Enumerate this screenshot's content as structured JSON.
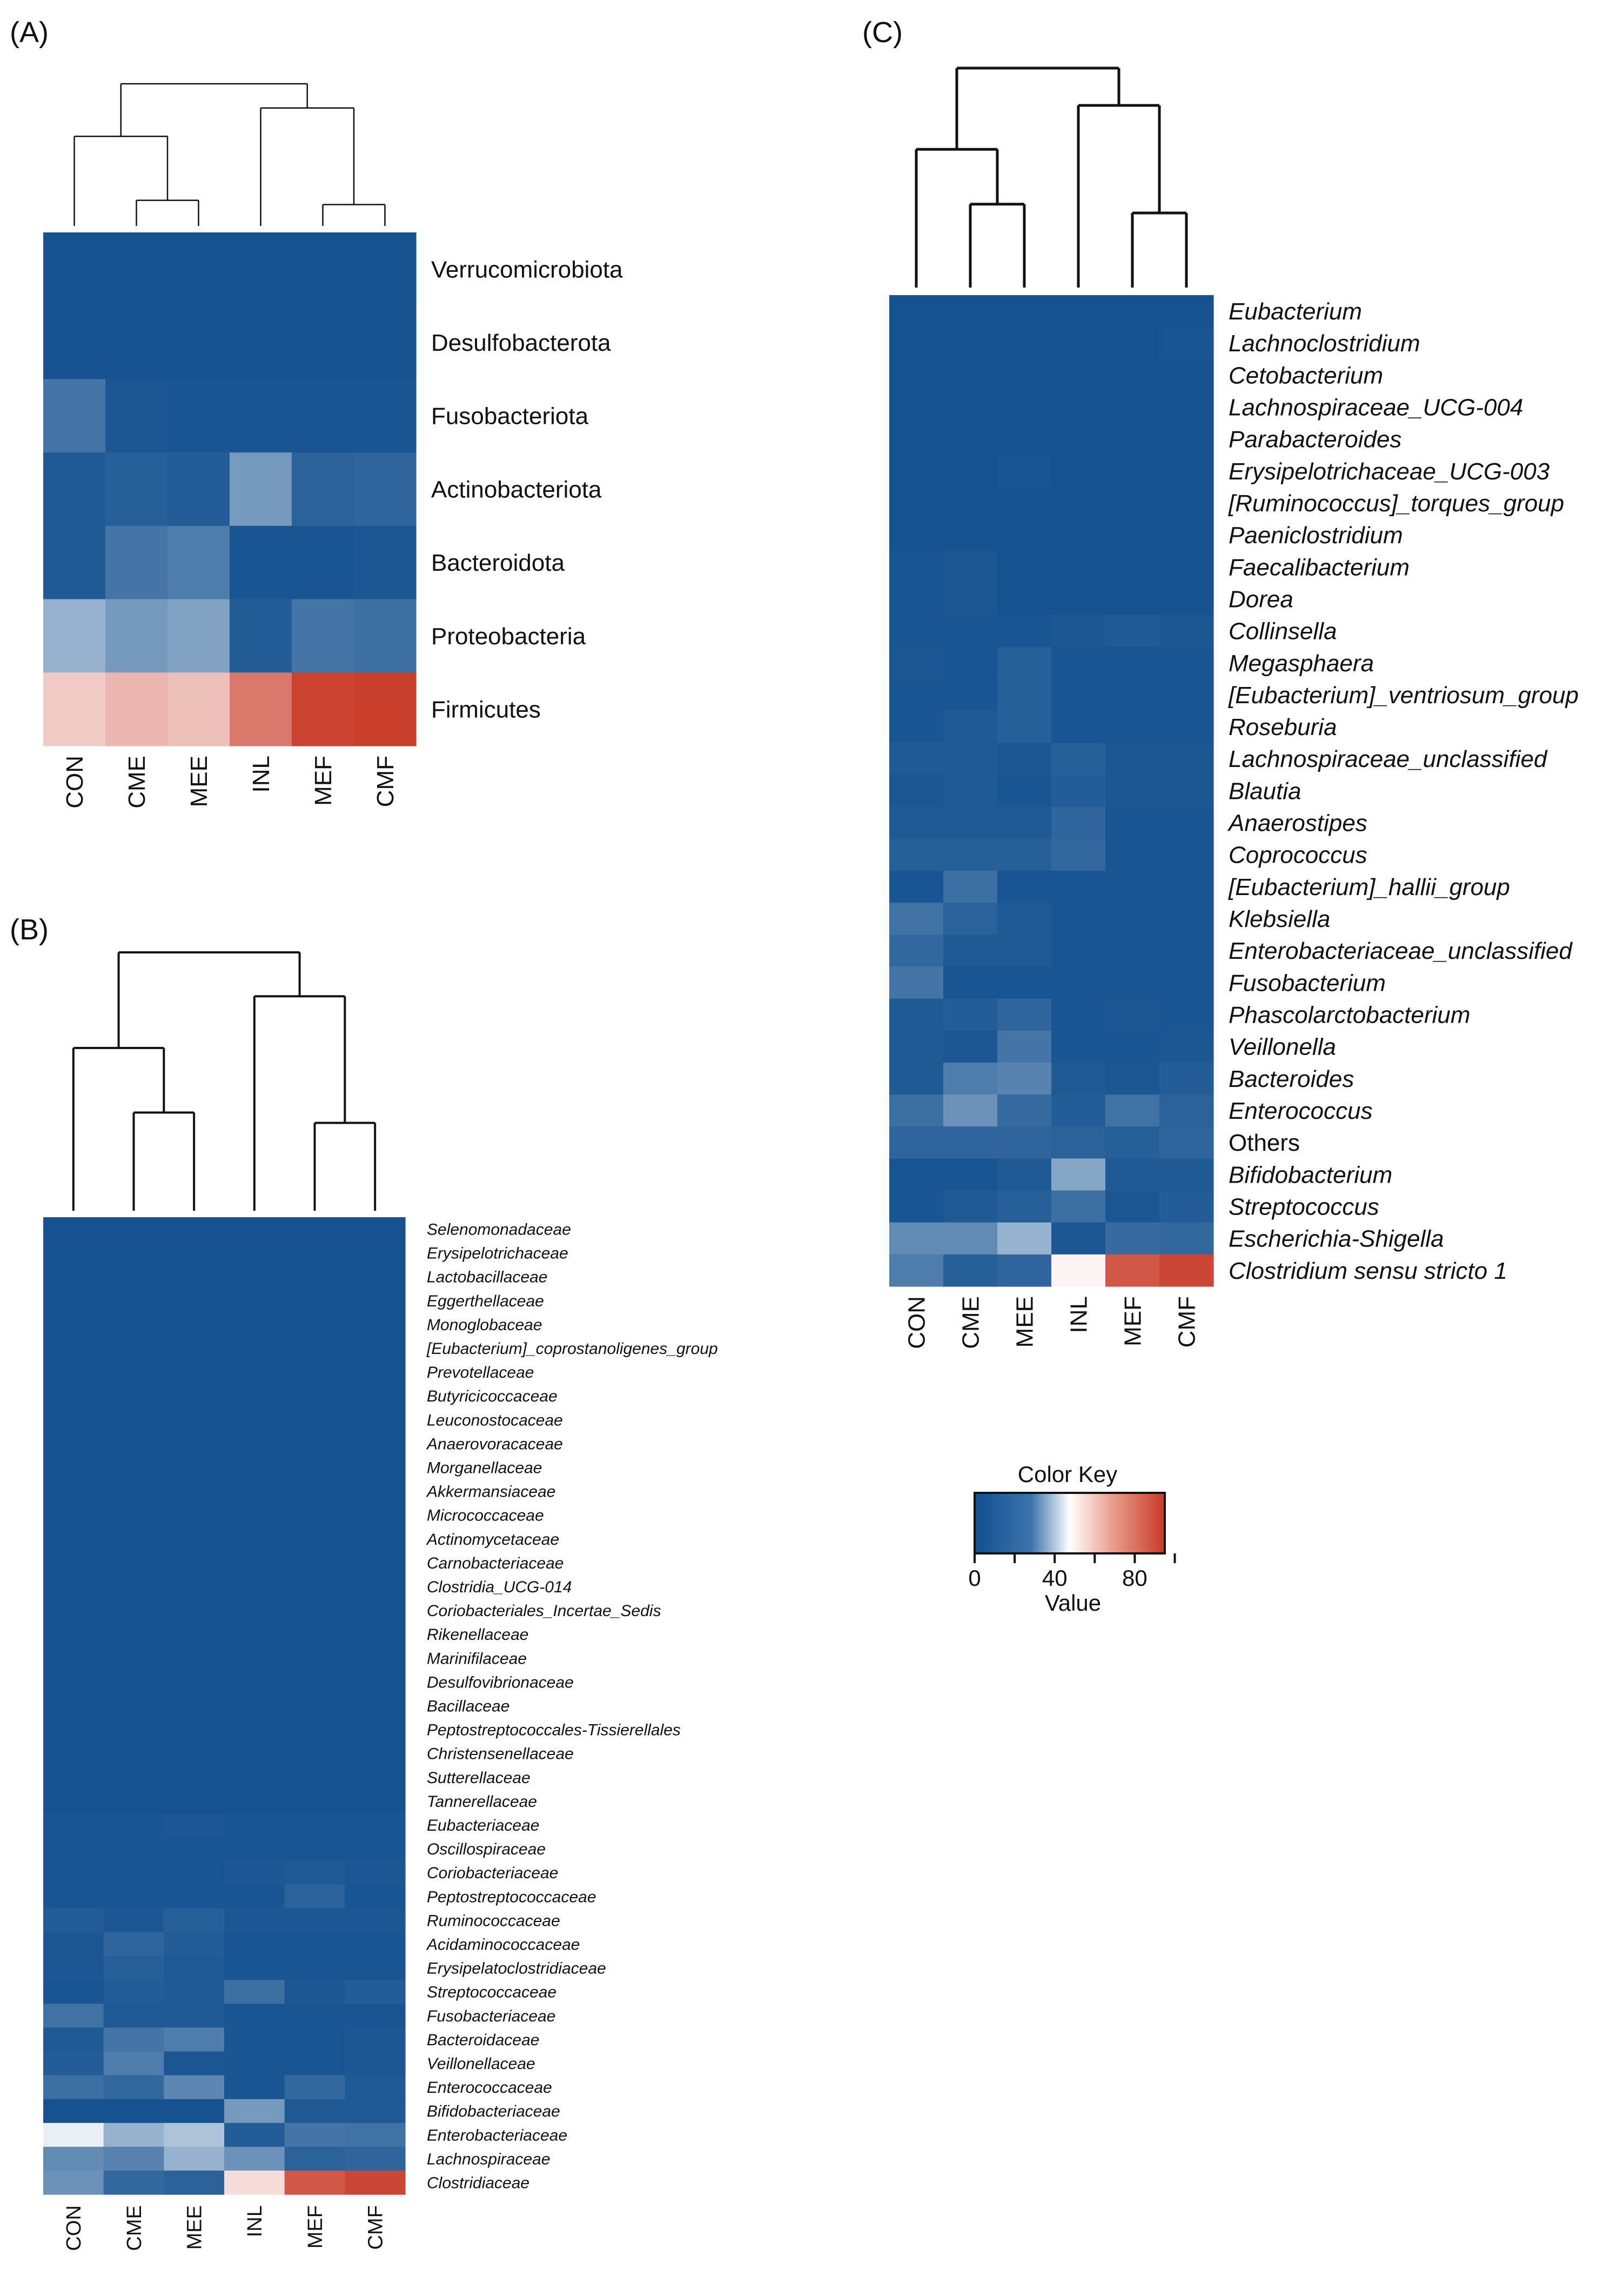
{
  "chart_data": [
    {
      "panel": "(A)",
      "type": "heatmap",
      "columns": [
        "CON",
        "CME",
        "MEE",
        "INL",
        "MEF",
        "CMF"
      ],
      "rows": [
        {
          "label": "Verrucomicrobiota",
          "italic": false,
          "values": [
            2,
            2,
            2,
            2,
            2,
            2
          ]
        },
        {
          "label": "Desulfobacterota",
          "italic": false,
          "values": [
            2,
            2,
            2,
            2,
            2,
            2
          ]
        },
        {
          "label": "Fusobacteriota",
          "italic": false,
          "values": [
            14,
            4,
            3,
            3,
            3,
            3
          ]
        },
        {
          "label": "Actinobacteriota",
          "italic": false,
          "values": [
            5,
            7,
            6,
            24,
            8,
            9
          ]
        },
        {
          "label": "Bacteroidota",
          "italic": false,
          "values": [
            5,
            14,
            16,
            3,
            3,
            4
          ]
        },
        {
          "label": "Proteobacteria",
          "italic": false,
          "values": [
            30,
            24,
            26,
            6,
            14,
            12
          ]
        },
        {
          "label": "Firmicutes",
          "italic": false,
          "values": [
            60,
            65,
            63,
            80,
            93,
            94
          ]
        }
      ],
      "dendrogram": "((CON,(CME,MEE)),(INL,(MEF,CMF)))"
    },
    {
      "panel": "(B)",
      "type": "heatmap",
      "columns": [
        "CON",
        "CME",
        "MEE",
        "INL",
        "MEF",
        "CMF"
      ],
      "rows": [
        {
          "label": "Selenomonadaceae",
          "italic": true,
          "values": [
            2,
            2,
            2,
            2,
            2,
            2
          ]
        },
        {
          "label": "Erysipelotrichaceae",
          "italic": true,
          "values": [
            2,
            2,
            2,
            2,
            2,
            2
          ]
        },
        {
          "label": "Lactobacillaceae",
          "italic": true,
          "values": [
            2,
            2,
            2,
            2,
            2,
            2
          ]
        },
        {
          "label": "Eggerthellaceae",
          "italic": true,
          "values": [
            2,
            2,
            2,
            2,
            2,
            2
          ]
        },
        {
          "label": "Monoglobaceae",
          "italic": true,
          "values": [
            2,
            2,
            2,
            2,
            2,
            2
          ]
        },
        {
          "label": "[Eubacterium]_coprostanoligenes_group",
          "italic": true,
          "values": [
            2,
            2,
            2,
            2,
            2,
            2
          ]
        },
        {
          "label": "Prevotellaceae",
          "italic": true,
          "values": [
            2,
            2,
            2,
            2,
            2,
            2
          ]
        },
        {
          "label": "Butyricicoccaceae",
          "italic": true,
          "values": [
            2,
            2,
            2,
            2,
            2,
            2
          ]
        },
        {
          "label": "Leuconostocaceae",
          "italic": true,
          "values": [
            2,
            2,
            2,
            2,
            2,
            2
          ]
        },
        {
          "label": "Anaerovoracaceae",
          "italic": true,
          "values": [
            2,
            2,
            2,
            2,
            2,
            2
          ]
        },
        {
          "label": "Morganellaceae",
          "italic": true,
          "values": [
            2,
            2,
            2,
            2,
            2,
            2
          ]
        },
        {
          "label": "Akkermansiaceae",
          "italic": true,
          "values": [
            2,
            2,
            2,
            2,
            2,
            2
          ]
        },
        {
          "label": "Micrococcaceae",
          "italic": true,
          "values": [
            2,
            2,
            2,
            2,
            2,
            2
          ]
        },
        {
          "label": "Actinomycetaceae",
          "italic": true,
          "values": [
            2,
            2,
            2,
            2,
            2,
            2
          ]
        },
        {
          "label": "Carnobacteriaceae",
          "italic": true,
          "values": [
            2,
            2,
            2,
            2,
            2,
            2
          ]
        },
        {
          "label": "Clostridia_UCG-014",
          "italic": true,
          "values": [
            2,
            2,
            2,
            2,
            2,
            2
          ]
        },
        {
          "label": "Coriobacteriales_Incertae_Sedis",
          "italic": true,
          "values": [
            2,
            2,
            2,
            2,
            2,
            2
          ]
        },
        {
          "label": "Rikenellaceae",
          "italic": true,
          "values": [
            2,
            2,
            2,
            2,
            2,
            2
          ]
        },
        {
          "label": "Marinifilaceae",
          "italic": true,
          "values": [
            2,
            2,
            2,
            2,
            2,
            2
          ]
        },
        {
          "label": "Desulfovibrionaceae",
          "italic": true,
          "values": [
            2,
            2,
            2,
            2,
            2,
            2
          ]
        },
        {
          "label": "Bacillaceae",
          "italic": true,
          "values": [
            2,
            2,
            2,
            2,
            2,
            2
          ]
        },
        {
          "label": "Peptostreptococcales-Tissierellales",
          "italic": true,
          "values": [
            2,
            2,
            2,
            2,
            2,
            2
          ]
        },
        {
          "label": "Christensenellaceae",
          "italic": true,
          "values": [
            2,
            2,
            2,
            2,
            2,
            2
          ]
        },
        {
          "label": "Sutterellaceae",
          "italic": true,
          "values": [
            2,
            2,
            2,
            2,
            2,
            2
          ]
        },
        {
          "label": "Tannerellaceae",
          "italic": true,
          "values": [
            2,
            2,
            2,
            2,
            2,
            2
          ]
        },
        {
          "label": "Eubacteriaceae",
          "italic": true,
          "values": [
            3,
            3,
            4,
            3,
            3,
            3
          ]
        },
        {
          "label": "Oscillospiraceae",
          "italic": true,
          "values": [
            3,
            3,
            3,
            3,
            3,
            3
          ]
        },
        {
          "label": "Coriobacteriaceae",
          "italic": true,
          "values": [
            3,
            3,
            3,
            4,
            5,
            4
          ]
        },
        {
          "label": "Peptostreptococcaceae",
          "italic": true,
          "values": [
            3,
            3,
            3,
            3,
            8,
            3
          ]
        },
        {
          "label": "Ruminococcaceae",
          "italic": true,
          "values": [
            6,
            4,
            7,
            4,
            4,
            4
          ]
        },
        {
          "label": "Acidaminococcaceae",
          "italic": true,
          "values": [
            4,
            9,
            6,
            3,
            3,
            3
          ]
        },
        {
          "label": "Erysipelatoclostridiaceae",
          "italic": true,
          "values": [
            4,
            7,
            5,
            3,
            3,
            3
          ]
        },
        {
          "label": "Streptococcaceae",
          "italic": true,
          "values": [
            3,
            6,
            5,
            12,
            4,
            6
          ]
        },
        {
          "label": "Fusobacteriaceae",
          "italic": true,
          "values": [
            13,
            5,
            5,
            3,
            3,
            3
          ]
        },
        {
          "label": "Bacteroidaceae",
          "italic": true,
          "values": [
            5,
            14,
            16,
            3,
            3,
            4
          ]
        },
        {
          "label": "Veillonellaceae",
          "italic": true,
          "values": [
            6,
            16,
            4,
            3,
            3,
            4
          ]
        },
        {
          "label": "Enterococcaceae",
          "italic": true,
          "values": [
            12,
            10,
            19,
            3,
            10,
            5
          ]
        },
        {
          "label": "Bifidobacteriaceae",
          "italic": true,
          "values": [
            2,
            2,
            2,
            24,
            5,
            5
          ]
        },
        {
          "label": "Enterobacteriaceae",
          "italic": true,
          "values": [
            44,
            30,
            34,
            6,
            14,
            13
          ]
        },
        {
          "label": "Lachnospiraceae",
          "italic": true,
          "values": [
            20,
            18,
            30,
            22,
            8,
            9
          ]
        },
        {
          "label": "Clostridiaceae",
          "italic": true,
          "values": [
            22,
            10,
            8,
            56,
            88,
            92
          ]
        }
      ],
      "dendrogram": "((CON,(CME,MEE)),(INL,(MEF,CMF)))"
    },
    {
      "panel": "(C)",
      "type": "heatmap",
      "columns": [
        "CON",
        "CME",
        "MEE",
        "INL",
        "MEF",
        "CMF"
      ],
      "rows": [
        {
          "label": "Eubacterium",
          "italic": true,
          "values": [
            2,
            2,
            2,
            2,
            2,
            2
          ]
        },
        {
          "label": "Lachnoclostridium",
          "italic": true,
          "values": [
            2,
            2,
            2,
            2,
            2,
            3
          ]
        },
        {
          "label": "Cetobacterium",
          "italic": true,
          "values": [
            2,
            2,
            2,
            2,
            2,
            2
          ]
        },
        {
          "label": "Lachnospiraceae_UCG-004",
          "italic": true,
          "values": [
            2,
            2,
            2,
            2,
            2,
            2
          ]
        },
        {
          "label": "Parabacteroides",
          "italic": true,
          "values": [
            2,
            2,
            2,
            2,
            2,
            2
          ]
        },
        {
          "label": "Erysipelotrichaceae_UCG-003",
          "italic": true,
          "values": [
            2,
            2,
            3,
            2,
            2,
            2
          ]
        },
        {
          "label": "[Ruminococcus]_torques_group",
          "italic": true,
          "values": [
            2,
            2,
            2,
            2,
            2,
            2
          ]
        },
        {
          "label": "Paeniclostridium",
          "italic": true,
          "values": [
            2,
            2,
            2,
            2,
            2,
            2
          ]
        },
        {
          "label": "Faecalibacterium",
          "italic": true,
          "values": [
            3,
            4,
            2,
            2,
            2,
            2
          ]
        },
        {
          "label": "Dorea",
          "italic": true,
          "values": [
            3,
            4,
            2,
            2,
            2,
            2
          ]
        },
        {
          "label": "Collinsella",
          "italic": true,
          "values": [
            3,
            3,
            3,
            4,
            5,
            4
          ]
        },
        {
          "label": "Megasphaera",
          "italic": true,
          "values": [
            4,
            3,
            7,
            3,
            3,
            3
          ]
        },
        {
          "label": "[Eubacterium]_ventriosum_group",
          "italic": true,
          "values": [
            3,
            3,
            7,
            3,
            3,
            3
          ]
        },
        {
          "label": "Roseburia",
          "italic": true,
          "values": [
            3,
            5,
            7,
            3,
            3,
            3
          ]
        },
        {
          "label": "Lachnospiraceae_unclassified",
          "italic": true,
          "values": [
            5,
            5,
            4,
            7,
            4,
            4
          ]
        },
        {
          "label": "Blautia",
          "italic": true,
          "values": [
            4,
            5,
            3,
            6,
            4,
            4
          ]
        },
        {
          "label": "Anaerostipes",
          "italic": true,
          "values": [
            5,
            5,
            5,
            9,
            3,
            3
          ]
        },
        {
          "label": "Coprococcus",
          "italic": true,
          "values": [
            7,
            7,
            7,
            10,
            3,
            3
          ]
        },
        {
          "label": "[Eubacterium]_hallii_group",
          "italic": true,
          "values": [
            3,
            12,
            3,
            3,
            3,
            3
          ]
        },
        {
          "label": "Klebsiella",
          "italic": true,
          "values": [
            13,
            8,
            5,
            3,
            3,
            3
          ]
        },
        {
          "label": "Enterobacteriaceae_unclassified",
          "italic": true,
          "values": [
            10,
            5,
            5,
            3,
            3,
            3
          ]
        },
        {
          "label": "Fusobacterium",
          "italic": true,
          "values": [
            14,
            3,
            3,
            3,
            3,
            3
          ]
        },
        {
          "label": "Phascolarctobacterium",
          "italic": true,
          "values": [
            5,
            6,
            9,
            3,
            4,
            3
          ]
        },
        {
          "label": "Veillonella",
          "italic": true,
          "values": [
            5,
            4,
            14,
            3,
            3,
            4
          ]
        },
        {
          "label": "Bacteroides",
          "italic": true,
          "values": [
            5,
            16,
            18,
            5,
            4,
            6
          ]
        },
        {
          "label": "Enterococcus",
          "italic": true,
          "values": [
            12,
            22,
            11,
            6,
            13,
            8
          ]
        },
        {
          "label": "Others",
          "italic": false,
          "values": [
            9,
            9,
            9,
            8,
            7,
            9
          ]
        },
        {
          "label": "Bifidobacterium",
          "italic": true,
          "values": [
            3,
            3,
            5,
            27,
            5,
            5
          ]
        },
        {
          "label": "Streptococcus",
          "italic": true,
          "values": [
            3,
            5,
            7,
            12,
            4,
            6
          ]
        },
        {
          "label": "Escherichia-Shigella",
          "italic": true,
          "values": [
            20,
            20,
            30,
            4,
            11,
            10
          ]
        },
        {
          "label": "Clostridium sensu stricto 1",
          "italic": true,
          "values": [
            16,
            7,
            9,
            50,
            88,
            92
          ]
        }
      ],
      "dendrogram": "((CON,(CME,MEE)),(INL,(MEF,CMF)))"
    }
  ],
  "color_key": {
    "title": "Color Key",
    "xlabel": "Value",
    "ticks": [
      "0",
      "40",
      "80"
    ],
    "range": [
      0,
      95
    ],
    "colors": {
      "low": "#114f8e",
      "mid": "#ffffff",
      "high": "#c93a27"
    }
  }
}
